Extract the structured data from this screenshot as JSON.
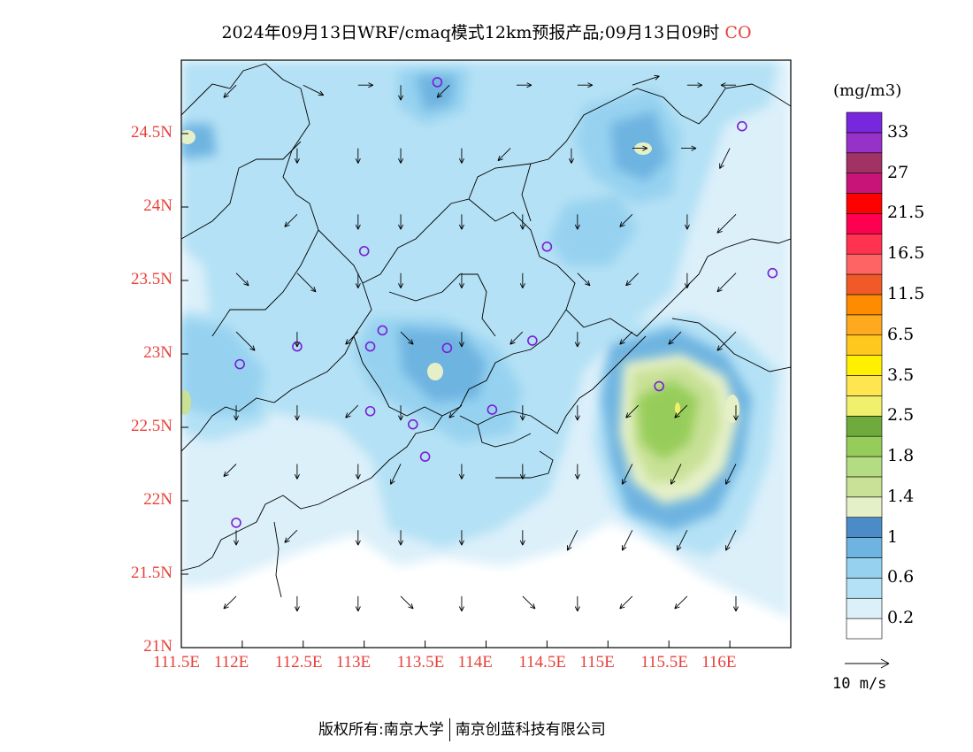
{
  "title": "2024年09月13日WRF/cmaq模式12km预报产品;09月13日09时",
  "pollutant": "CO",
  "unit": "(mg/m3)",
  "wind_reference_label": "10 m/s",
  "footer": {
    "left": "版权所有:南京大学",
    "right": "南京创蓝科技有限公司"
  },
  "lat_ticks": [
    "24.5N",
    "24N",
    "23.5N",
    "23N",
    "22.5N",
    "22N",
    "21.5N",
    "21N"
  ],
  "lon_ticks": [
    "111.5E",
    "112E",
    "112.5E",
    "113E",
    "113.5E",
    "114E",
    "114.5E",
    "115E",
    "115.5E",
    "116E"
  ],
  "map_extent": {
    "lon": [
      111.5,
      116.5
    ],
    "lat": [
      21.0,
      25.0
    ]
  },
  "colorbar": {
    "colors": [
      "#ffffff",
      "#dcf0fa",
      "#b4e1f5",
      "#96d2f0",
      "#6eb4e1",
      "#4b8cc8",
      "#e6f0c8",
      "#c8e196",
      "#b4dc82",
      "#96cd5a",
      "#6eaa3c",
      "#f0f06e",
      "#ffe650",
      "#fff000",
      "#ffc81e",
      "#ffaa1e",
      "#ff8c00",
      "#f05a28",
      "#ff6464",
      "#ff3250",
      "#ff0050",
      "#ff0000",
      "#c81478",
      "#a03264",
      "#9632c8",
      "#7828dc"
    ],
    "labels": [
      "0.2",
      "0.6",
      "1",
      "1.4",
      "1.8",
      "2.5",
      "3.5",
      "6.5",
      "11.5",
      "16.5",
      "21.5",
      "27",
      "33"
    ]
  },
  "stations": [
    [
      113.6,
      24.85
    ],
    [
      116.1,
      24.55
    ],
    [
      113.0,
      23.7
    ],
    [
      114.5,
      23.73
    ],
    [
      116.35,
      23.55
    ],
    [
      112.45,
      23.05
    ],
    [
      113.05,
      23.05
    ],
    [
      113.15,
      23.16
    ],
    [
      113.68,
      23.04
    ],
    [
      114.38,
      23.09
    ],
    [
      111.98,
      22.93
    ],
    [
      115.42,
      22.78
    ],
    [
      113.05,
      22.61
    ],
    [
      113.4,
      22.52
    ],
    [
      114.05,
      22.62
    ],
    [
      113.5,
      22.3
    ],
    [
      111.95,
      21.85
    ]
  ],
  "wind": [
    [
      111.95,
      24.83,
      -1,
      1
    ],
    [
      112.5,
      24.83,
      2,
      1
    ],
    [
      112.95,
      24.83,
      1,
      0
    ],
    [
      113.3,
      24.83,
      0,
      1
    ],
    [
      113.7,
      24.83,
      -1,
      1
    ],
    [
      114.25,
      24.83,
      1,
      0
    ],
    [
      114.75,
      24.83,
      1,
      0
    ],
    [
      115.2,
      24.83,
      3,
      -1
    ],
    [
      115.65,
      24.83,
      1,
      0
    ],
    [
      116.05,
      24.83,
      -1,
      0
    ],
    [
      112.45,
      24.4,
      0,
      1
    ],
    [
      112.95,
      24.4,
      0,
      1
    ],
    [
      113.3,
      24.4,
      0,
      1
    ],
    [
      113.8,
      24.4,
      0,
      1
    ],
    [
      114.2,
      24.4,
      -1,
      1
    ],
    [
      114.7,
      24.4,
      0,
      1
    ],
    [
      115.2,
      24.4,
      1,
      0
    ],
    [
      115.6,
      24.4,
      1,
      0
    ],
    [
      116.0,
      24.4,
      -1,
      2
    ],
    [
      112.45,
      23.95,
      -1,
      1
    ],
    [
      112.95,
      23.95,
      0,
      1
    ],
    [
      113.3,
      23.95,
      0,
      1
    ],
    [
      113.8,
      23.95,
      0,
      1
    ],
    [
      114.3,
      23.95,
      0,
      1
    ],
    [
      114.75,
      23.95,
      0,
      1
    ],
    [
      115.2,
      23.95,
      -1,
      1
    ],
    [
      115.65,
      23.95,
      0,
      1
    ],
    [
      116.05,
      23.95,
      -2,
      2
    ],
    [
      111.95,
      23.55,
      1,
      1
    ],
    [
      112.45,
      23.55,
      2,
      2
    ],
    [
      112.95,
      23.55,
      0,
      1
    ],
    [
      113.3,
      23.55,
      0,
      1
    ],
    [
      113.8,
      23.55,
      0,
      1
    ],
    [
      114.3,
      23.55,
      0,
      1
    ],
    [
      114.75,
      23.55,
      1,
      1
    ],
    [
      115.25,
      23.55,
      -1,
      1
    ],
    [
      115.65,
      23.55,
      0,
      1
    ],
    [
      116.05,
      23.55,
      -2,
      2
    ],
    [
      111.95,
      23.15,
      2,
      2
    ],
    [
      112.45,
      23.15,
      0,
      1
    ],
    [
      112.95,
      23.15,
      -1,
      1
    ],
    [
      113.3,
      23.15,
      1,
      1
    ],
    [
      113.8,
      23.15,
      0,
      1
    ],
    [
      114.3,
      23.15,
      -1,
      1
    ],
    [
      114.75,
      23.15,
      0,
      1
    ],
    [
      115.2,
      23.15,
      -1,
      1
    ],
    [
      115.6,
      23.15,
      -1,
      1
    ],
    [
      116.05,
      23.15,
      -2,
      2
    ],
    [
      111.95,
      22.65,
      0,
      1
    ],
    [
      112.45,
      22.65,
      0,
      1
    ],
    [
      112.95,
      22.65,
      -1,
      1
    ],
    [
      113.3,
      22.65,
      0,
      1
    ],
    [
      113.8,
      22.65,
      -1,
      1
    ],
    [
      114.3,
      22.65,
      0,
      1
    ],
    [
      114.75,
      22.65,
      0,
      1
    ],
    [
      115.25,
      22.65,
      -1,
      1
    ],
    [
      115.65,
      22.65,
      -1,
      1
    ],
    [
      116.05,
      22.65,
      0,
      1
    ],
    [
      111.95,
      22.25,
      -1,
      1
    ],
    [
      112.45,
      22.25,
      0,
      1
    ],
    [
      112.95,
      22.25,
      0,
      1
    ],
    [
      113.3,
      22.25,
      -1,
      2
    ],
    [
      113.8,
      22.25,
      0,
      1
    ],
    [
      114.3,
      22.25,
      0,
      1
    ],
    [
      114.75,
      22.25,
      0,
      1
    ],
    [
      115.2,
      22.25,
      -1,
      2
    ],
    [
      115.6,
      22.25,
      -1,
      2
    ],
    [
      116.05,
      22.25,
      -1,
      2
    ],
    [
      111.95,
      21.8,
      0,
      1
    ],
    [
      112.45,
      21.8,
      -1,
      1
    ],
    [
      112.95,
      21.8,
      0,
      1
    ],
    [
      113.3,
      21.8,
      0,
      1
    ],
    [
      113.8,
      21.8,
      0,
      1
    ],
    [
      114.3,
      21.8,
      0,
      1
    ],
    [
      114.75,
      21.8,
      -1,
      2
    ],
    [
      115.2,
      21.8,
      -1,
      2
    ],
    [
      115.65,
      21.8,
      -1,
      2
    ],
    [
      116.05,
      21.8,
      -1,
      2
    ],
    [
      111.95,
      21.35,
      -1,
      1
    ],
    [
      112.45,
      21.35,
      0,
      1
    ],
    [
      112.95,
      21.35,
      0,
      1
    ],
    [
      113.3,
      21.35,
      1,
      1
    ],
    [
      113.8,
      21.35,
      0,
      1
    ],
    [
      114.3,
      21.35,
      1,
      1
    ],
    [
      114.75,
      21.35,
      0,
      1
    ],
    [
      115.2,
      21.35,
      -1,
      1
    ],
    [
      115.65,
      21.35,
      -1,
      1
    ],
    [
      116.05,
      21.35,
      0,
      1
    ]
  ]
}
